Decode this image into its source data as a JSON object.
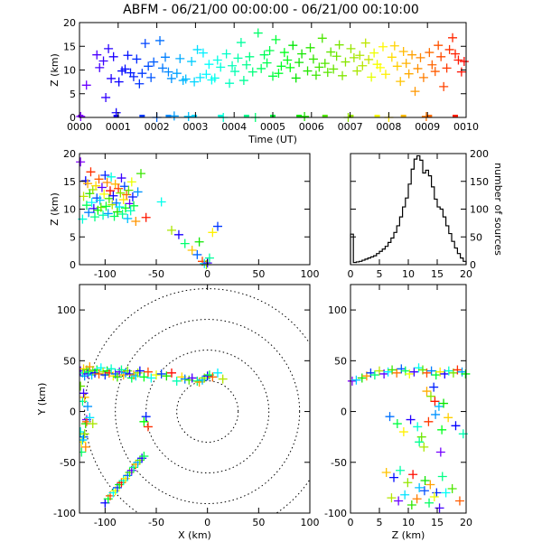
{
  "title": "ABFM - 06/21/00 00:00:00 - 06/21/00 00:10:00",
  "chart_data": [
    {
      "id": "time-height",
      "type": "scatter",
      "xlabel": "Time (UT)",
      "ylabel": "Z (km)",
      "xlim": [
        0,
        10
      ],
      "ylim": [
        0,
        20
      ],
      "xticklabels": [
        "0000",
        "0001",
        "0002",
        "0003",
        "0004",
        "0005",
        "0006",
        "0007",
        "0008",
        "0009",
        "0010"
      ],
      "yticks": [
        0,
        5,
        10,
        15,
        20
      ],
      "color_by": "time",
      "points_x": [
        0.03,
        0.18,
        0.45,
        0.52,
        0.62,
        0.68,
        0.75,
        0.82,
        0.88,
        0.95,
        1.02,
        1.1,
        1.18,
        1.25,
        1.32,
        1.4,
        1.48,
        1.55,
        1.62,
        1.7,
        1.78,
        1.85,
        1.92,
        2.0,
        2.08,
        2.15,
        2.22,
        2.3,
        2.38,
        2.45,
        2.52,
        2.6,
        2.68,
        2.75,
        2.82,
        2.9,
        2.97,
        3.05,
        3.12,
        3.2,
        3.28,
        3.35,
        3.42,
        3.5,
        3.57,
        3.65,
        3.72,
        3.8,
        3.88,
        3.95,
        4.02,
        4.1,
        4.18,
        4.25,
        4.32,
        4.4,
        4.48,
        4.55,
        4.62,
        4.7,
        4.78,
        4.85,
        4.92,
        5.0,
        5.08,
        5.15,
        5.22,
        5.3,
        5.38,
        5.45,
        5.52,
        5.6,
        5.68,
        5.75,
        5.82,
        5.9,
        5.97,
        6.05,
        6.12,
        6.2,
        6.28,
        6.35,
        6.42,
        6.5,
        6.57,
        6.65,
        6.72,
        6.8,
        6.88,
        6.95,
        7.02,
        7.1,
        7.18,
        7.25,
        7.32,
        7.4,
        7.48,
        7.55,
        7.62,
        7.7,
        7.78,
        7.85,
        7.92,
        8.0,
        8.08,
        8.15,
        8.22,
        8.3,
        8.38,
        8.45,
        8.52,
        8.6,
        8.68,
        8.75,
        8.82,
        8.9,
        8.97,
        9.05,
        9.12,
        9.2,
        9.28,
        9.35,
        9.42,
        9.5,
        9.57,
        9.65,
        9.72,
        9.8,
        9.88,
        9.95
      ],
      "points_z": [
        0.2,
        6.8,
        13.2,
        10.5,
        11.9,
        4.2,
        14.5,
        8.2,
        12.8,
        1.0,
        7.5,
        9.8,
        10.2,
        13.1,
        9.4,
        8.6,
        12.3,
        7.1,
        9.3,
        15.6,
        10.8,
        8.4,
        11.7,
        0.0,
        16.2,
        10.4,
        12.7,
        9.6,
        8.2,
        0.3,
        9.3,
        12.4,
        7.8,
        8.1,
        0.2,
        11.8,
        7.5,
        14.3,
        8.4,
        13.6,
        9.1,
        11.2,
        7.9,
        8.3,
        12.1,
        10.6,
        0.0,
        13.4,
        7.2,
        10.9,
        9.7,
        12.5,
        15.8,
        7.8,
        11.1,
        12.8,
        9.6,
        0.0,
        17.8,
        10.3,
        13.2,
        11.5,
        14.1,
        8.7,
        16.4,
        9.3,
        10.8,
        13.7,
        12.1,
        10.5,
        15.2,
        8.3,
        11.6,
        13.4,
        0.2,
        9.8,
        14.7,
        12.3,
        8.9,
        10.6,
        16.7,
        11.4,
        9.5,
        13.8,
        10.2,
        12.9,
        15.3,
        8.8,
        11.7,
        0.0,
        14.5,
        12.6,
        9.8,
        13.1,
        10.9,
        15.7,
        12.2,
        8.5,
        13.6,
        11.2,
        10.5,
        14.9,
        9.1,
        0.0,
        12.7,
        15.1,
        10.8,
        7.6,
        13.9,
        11.4,
        9.2,
        13.2,
        5.5,
        10.3,
        12.6,
        8.4,
        0.2,
        13.7,
        11.1,
        9.7,
        15.2,
        12.8,
        6.5,
        10.4,
        14.3,
        16.8,
        13.4,
        12.1,
        9.6,
        11.8
      ]
    },
    {
      "id": "x-z",
      "type": "scatter",
      "xlabel": "",
      "ylabel": "Z (km)",
      "xlim": [
        -125,
        100
      ],
      "ylim": [
        0,
        20
      ],
      "xticks": [
        -100,
        -50,
        0,
        50,
        100
      ],
      "yticks": [
        0,
        5,
        10,
        15,
        20
      ],
      "points_x": [
        -124,
        -122,
        -121,
        -119,
        -118,
        -117,
        -116,
        -115,
        -114,
        -113,
        -112,
        -111,
        -110,
        -109,
        -108,
        -107,
        -106,
        -105,
        -104,
        -103,
        -102,
        -101,
        -100,
        -99,
        -98,
        -97,
        -96,
        -95,
        -94,
        -93,
        -92,
        -91,
        -90,
        -89,
        -88,
        -87,
        -86,
        -85,
        -84,
        -83,
        -82,
        -81,
        -80,
        -79,
        -78,
        -77,
        -76,
        -75,
        -74,
        -73,
        -72,
        -70,
        -68,
        -65,
        -60,
        -45,
        -35,
        -28,
        -22,
        -15,
        -10,
        -8,
        -5,
        -3,
        -1,
        0,
        2,
        5,
        10
      ],
      "points_z": [
        18.5,
        8.2,
        12.3,
        15.1,
        10.7,
        14.6,
        9.4,
        12.8,
        16.7,
        11.2,
        13.5,
        10.1,
        8.6,
        14.2,
        12.0,
        9.8,
        15.4,
        11.6,
        10.3,
        13.9,
        8.9,
        12.7,
        16.1,
        10.5,
        14.8,
        9.2,
        11.9,
        13.3,
        15.8,
        10.8,
        12.4,
        8.7,
        14.5,
        11.1,
        9.5,
        13.7,
        10.4,
        12.9,
        15.6,
        9.1,
        11.7,
        14.1,
        10.2,
        12.6,
        8.3,
        13.4,
        11.0,
        9.7,
        14.9,
        12.2,
        10.6,
        7.8,
        13.1,
        16.4,
        8.5,
        11.3,
        6.2,
        5.4,
        3.8,
        2.6,
        1.8,
        4.1,
        0.6,
        0.2,
        0.0,
        0.3,
        1.2,
        5.8,
        6.9
      ]
    },
    {
      "id": "z-histogram",
      "type": "line",
      "xlabel": "",
      "ylabel": "number of sources",
      "xlim": [
        0,
        20
      ],
      "ylim": [
        0,
        200
      ],
      "xticks": [
        0,
        5,
        10,
        15,
        20
      ],
      "yticks": [
        0,
        50,
        100,
        150,
        200
      ],
      "bins_z": [
        0.25,
        0.75,
        1.25,
        1.75,
        2.25,
        2.75,
        3.25,
        3.75,
        4.25,
        4.75,
        5.25,
        5.75,
        6.25,
        6.75,
        7.25,
        7.75,
        8.25,
        8.75,
        9.25,
        9.75,
        10.25,
        10.75,
        11.25,
        11.75,
        12.25,
        12.75,
        13.25,
        13.75,
        14.25,
        14.75,
        15.25,
        15.75,
        16.25,
        16.75,
        17.25,
        17.75,
        18.25,
        18.75,
        19.25,
        19.75
      ],
      "counts": [
        55,
        4,
        5,
        6,
        8,
        10,
        12,
        14,
        16,
        20,
        24,
        28,
        33,
        40,
        48,
        58,
        70,
        86,
        104,
        120,
        145,
        172,
        190,
        196,
        188,
        165,
        170,
        160,
        140,
        118,
        104,
        100,
        86,
        70,
        56,
        42,
        30,
        20,
        12,
        6
      ]
    },
    {
      "id": "x-y",
      "type": "scatter",
      "xlabel": "X (km)",
      "ylabel": "Y (km)",
      "xlim": [
        -125,
        100
      ],
      "ylim": [
        -100,
        125
      ],
      "xticks": [
        -100,
        -50,
        0,
        50,
        100
      ],
      "yticks": [
        -100,
        -50,
        0,
        50,
        100
      ],
      "range_rings_km": [
        30,
        60,
        90,
        120
      ],
      "points_x": [
        -124,
        -122,
        -121,
        -120,
        -118,
        -117,
        -116,
        -115,
        -113,
        -112,
        -110,
        -108,
        -106,
        -104,
        -102,
        -100,
        -98,
        -96,
        -94,
        -92,
        -90,
        -88,
        -86,
        -84,
        -82,
        -80,
        -78,
        -76,
        -74,
        -72,
        -70,
        -68,
        -66,
        -62,
        -58,
        -55,
        -50,
        -45,
        -40,
        -35,
        -30,
        -25,
        -22,
        -18,
        -15,
        -10,
        -8,
        -5,
        -3,
        0,
        2,
        5,
        10,
        15,
        -60,
        -62,
        -58,
        -124,
        -123,
        -121,
        -119,
        -118,
        -122,
        -120,
        -117,
        -124,
        -121,
        -123,
        -119,
        -122,
        -120,
        -100,
        -97,
        -95,
        -92,
        -90,
        -88,
        -86,
        -84,
        -82,
        -80,
        -78,
        -76,
        -74,
        -72,
        -70,
        -68,
        -66,
        -64,
        -62,
        -118,
        -115,
        -112
      ],
      "points_y": [
        40,
        38,
        42,
        35,
        41,
        37,
        39,
        44,
        36,
        40,
        38,
        41,
        37,
        43,
        39,
        36,
        40,
        38,
        42,
        35,
        37,
        34,
        39,
        41,
        36,
        38,
        40,
        37,
        33,
        36,
        35,
        38,
        40,
        34,
        39,
        33,
        36,
        37,
        35,
        38,
        30,
        34,
        32,
        31,
        33,
        30,
        29,
        31,
        33,
        35,
        36,
        34,
        38,
        32,
        -5,
        -10,
        -15,
        -20,
        -30,
        -25,
        -12,
        -8,
        10,
        14,
        5,
        25,
        18,
        -40,
        -35,
        -28,
        -22,
        -90,
        -86,
        -83,
        -80,
        -78,
        -75,
        -72,
        -70,
        -68,
        -66,
        -63,
        -60,
        -58,
        -55,
        -52,
        -50,
        -48,
        -46,
        -44,
        -10,
        -6,
        -12
      ]
    },
    {
      "id": "z-y",
      "type": "scatter",
      "xlabel": "Z (km)",
      "ylabel": "",
      "xlim": [
        0,
        20
      ],
      "ylim": [
        -100,
        125
      ],
      "xticks": [
        0,
        5,
        10,
        15,
        20
      ],
      "yticks": [
        -100,
        -50,
        0,
        50,
        100
      ],
      "points_z": [
        0.3,
        1.0,
        2.0,
        2.8,
        3.5,
        4.2,
        5.0,
        5.8,
        6.5,
        7.2,
        8.0,
        8.8,
        9.5,
        10.2,
        11.0,
        11.8,
        12.5,
        13.2,
        14.0,
        14.8,
        15.5,
        16.3,
        17.0,
        17.8,
        18.5,
        19.3,
        19.9,
        6.2,
        7.5,
        8.6,
        9.9,
        10.8,
        11.9,
        12.9,
        13.8,
        14.9,
        15.9,
        7.1,
        8.3,
        9.4,
        10.6,
        11.5,
        12.8,
        13.6,
        14.5,
        15.4,
        16.5,
        17.6,
        18.9,
        6.8,
        8.1,
        9.2,
        10.4,
        11.6,
        12.3,
        13.5,
        14.7,
        15.8,
        16.9,
        18.2,
        19.5,
        13.9,
        14.6,
        15.3,
        16.1,
        13.2,
        14.4,
        11.9,
        12.7,
        15.6
      ],
      "points_y": [
        30,
        31,
        33,
        35,
        38,
        36,
        40,
        37,
        39,
        41,
        38,
        42,
        40,
        37,
        39,
        43,
        41,
        38,
        40,
        36,
        39,
        37,
        40,
        38,
        41,
        39,
        37,
        -60,
        -65,
        -58,
        -70,
        -62,
        -75,
        -68,
        -72,
        -80,
        -64,
        -85,
        -88,
        -82,
        -92,
        -86,
        -78,
        -90,
        -84,
        -95,
        -80,
        -76,
        -88,
        -5,
        -12,
        -20,
        -8,
        -15,
        -25,
        -10,
        -3,
        -18,
        -6,
        -14,
        -22,
        15,
        10,
        5,
        8,
        20,
        24,
        -30,
        -35,
        -40
      ]
    }
  ]
}
